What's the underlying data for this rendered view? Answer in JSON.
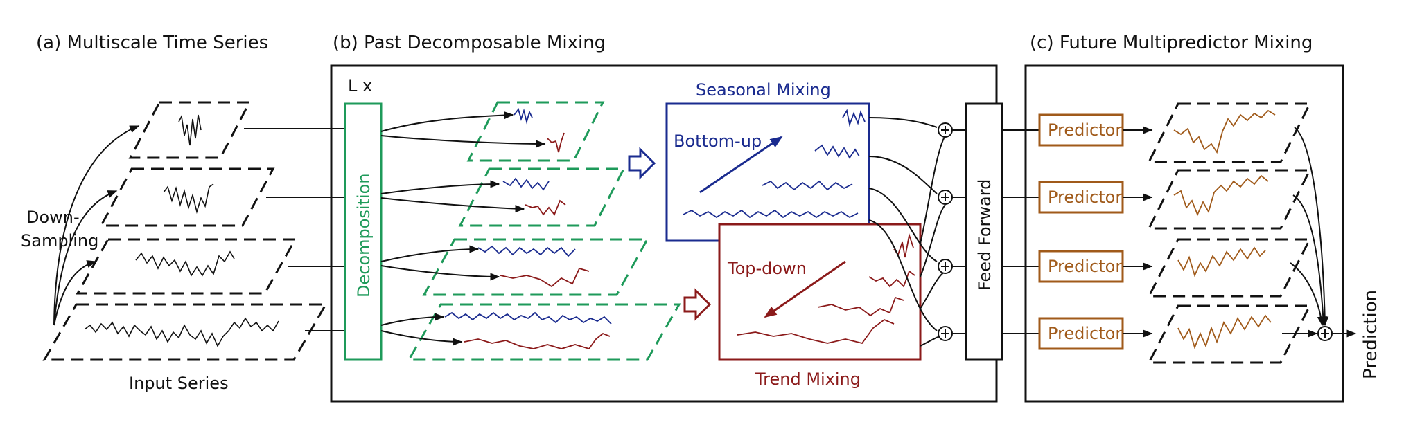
{
  "titles": {
    "a": "(a) Multiscale Time Series",
    "b": "(b) Past Decomposable Mixing",
    "c": "(c) Future Multipredictor Mixing"
  },
  "labels": {
    "downsampling_1": "Down-",
    "downsampling_2": "Sampling",
    "input_series": "Input Series",
    "layers": "L x",
    "decomposition": "Decomposition",
    "seasonal_mixing": "Seasonal Mixing",
    "bottom_up": "Bottom-up",
    "trend_mixing": "Trend Mixing",
    "top_down": "Top-down",
    "feed_forward": "Feed Forward",
    "predictor": "Predictor",
    "prediction": "Prediction"
  },
  "colors": {
    "seasonal": "#1a2b8f",
    "trend": "#8b1a1a",
    "decomposition": "#1e9a5a",
    "predictor": "#a05a1a",
    "line": "#111111"
  }
}
